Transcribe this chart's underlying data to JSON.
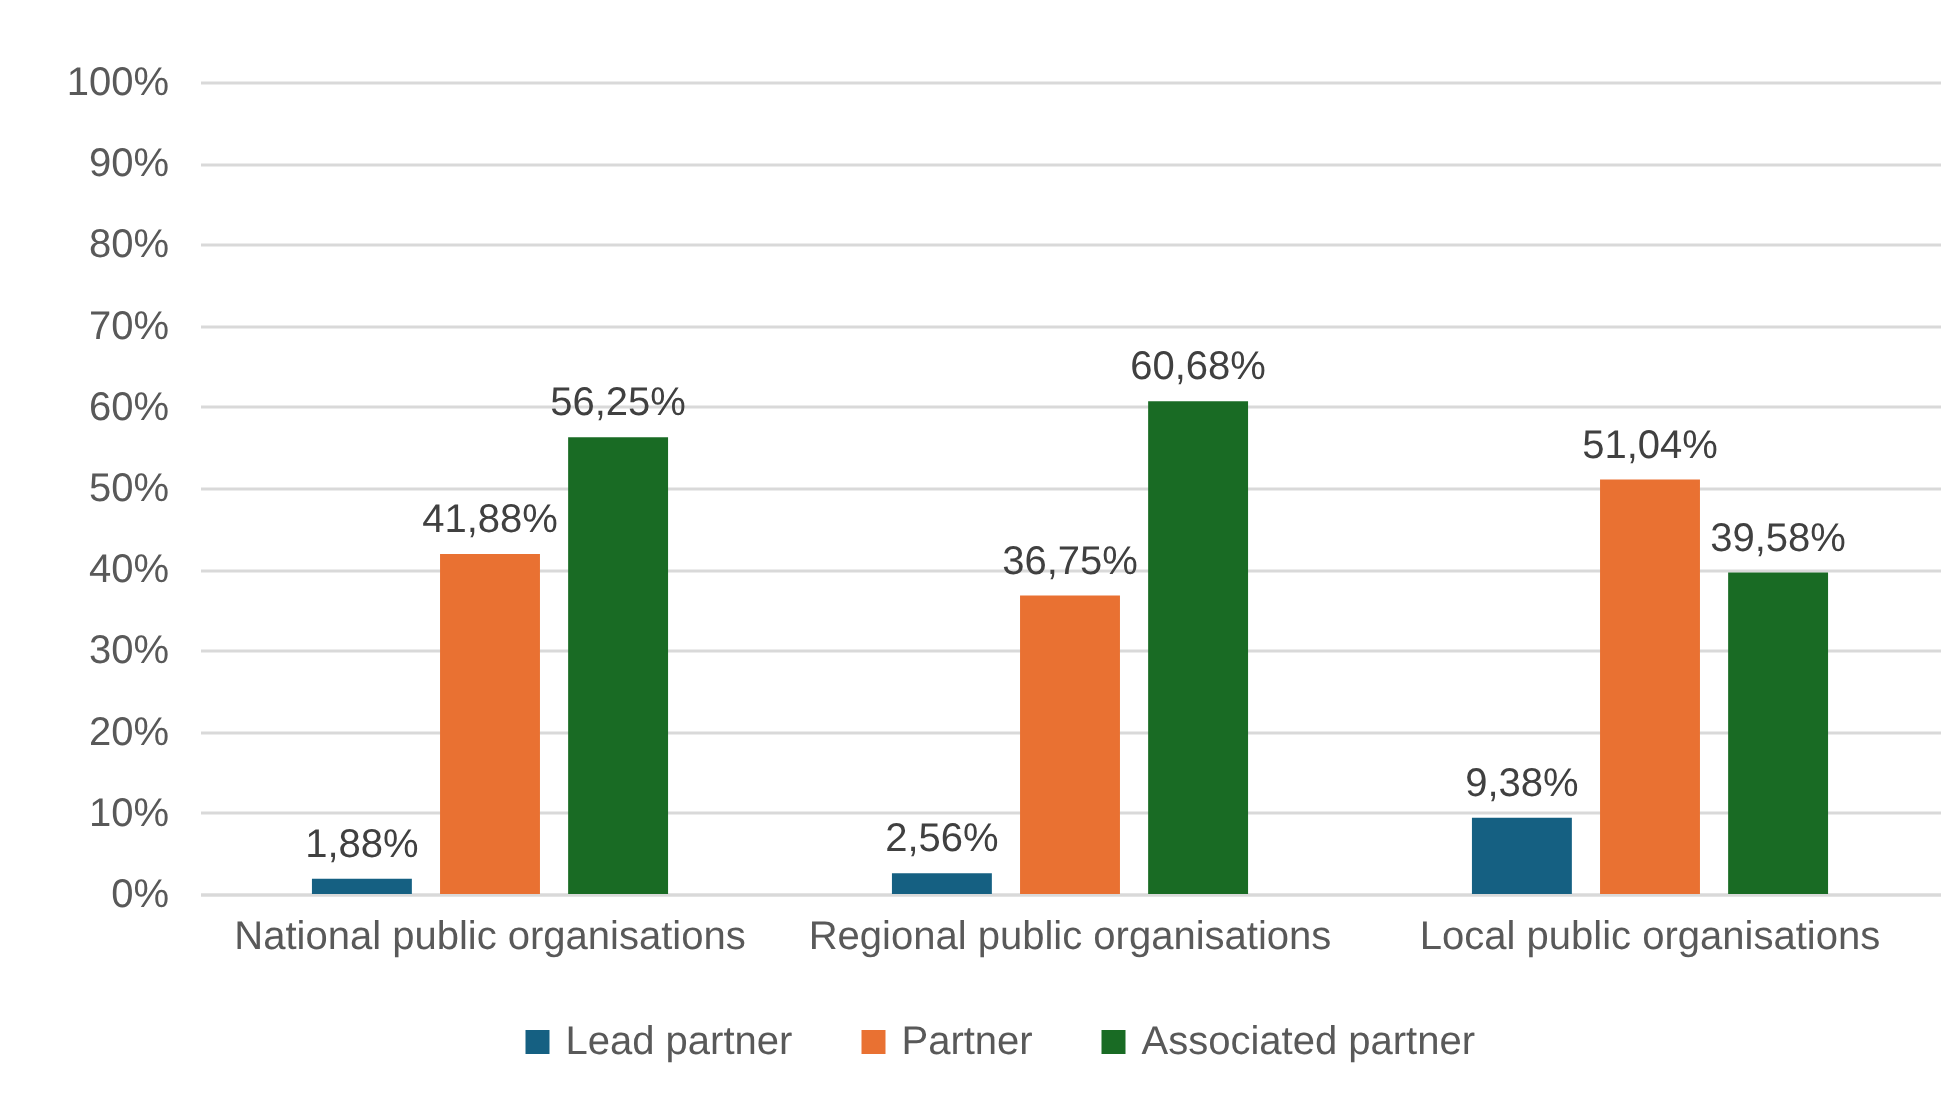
{
  "chart_data": {
    "type": "bar",
    "categories": [
      "National public organisations",
      "Regional public organisations",
      "Local public organisations"
    ],
    "series": [
      {
        "name": "Lead partner",
        "color": "#156082",
        "values": [
          1.88,
          2.56,
          9.38
        ],
        "value_labels": [
          "1,88%",
          "2,56%",
          "9,38%"
        ]
      },
      {
        "name": "Partner",
        "color": "#e97132",
        "values": [
          41.88,
          36.75,
          51.04
        ],
        "value_labels": [
          "41,88%",
          "36,75%",
          "51,04%"
        ]
      },
      {
        "name": "Associated partner",
        "color": "#196b24",
        "values": [
          56.25,
          60.68,
          39.58
        ],
        "value_labels": [
          "56,25%",
          "60,68%",
          "39,58%"
        ]
      }
    ],
    "ylim": [
      0,
      100
    ],
    "yticks": [
      {
        "value": 0,
        "label": "0%"
      },
      {
        "value": 10,
        "label": "10%"
      },
      {
        "value": 20,
        "label": "20%"
      },
      {
        "value": 30,
        "label": "30%"
      },
      {
        "value": 40,
        "label": "40%"
      },
      {
        "value": 50,
        "label": "50%"
      },
      {
        "value": 60,
        "label": "60%"
      },
      {
        "value": 70,
        "label": "70%"
      },
      {
        "value": 80,
        "label": "80%"
      },
      {
        "value": 90,
        "label": "90%"
      },
      {
        "value": 100,
        "label": "100%"
      }
    ],
    "grid": "y",
    "legend": "bottom"
  }
}
